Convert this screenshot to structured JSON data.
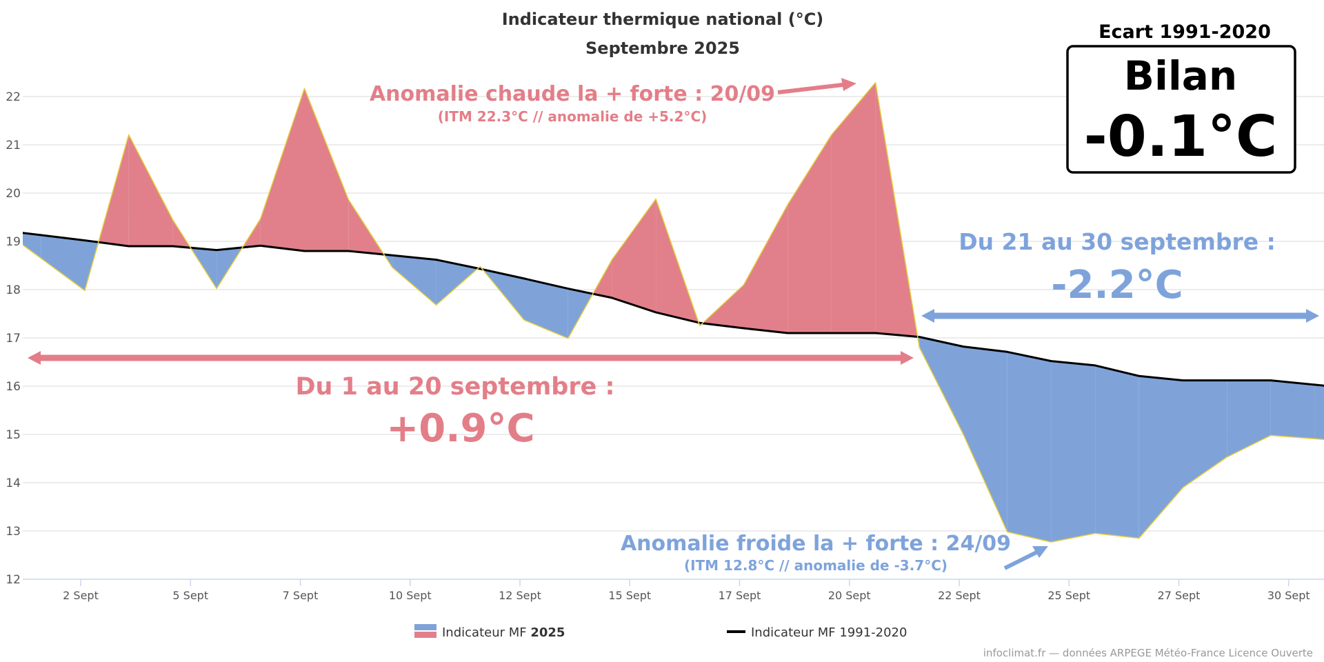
{
  "chart_data": {
    "type": "area",
    "title": "Indicateur thermique national (°C)",
    "subtitle": "Septembre 2025",
    "x": [
      1,
      2,
      3,
      4,
      5,
      6,
      7,
      8,
      9,
      10,
      11,
      12,
      13,
      14,
      15,
      16,
      17,
      18,
      19,
      20,
      21,
      22,
      23,
      24,
      25,
      26,
      27,
      28,
      29,
      30
    ],
    "x_tick_labels": [
      "2 Sept",
      "5 Sept",
      "7 Sept",
      "10 Sept",
      "12 Sept",
      "15 Sept",
      "17 Sept",
      "20 Sept",
      "22 Sept",
      "25 Sept",
      "27 Sept",
      "30 Sept"
    ],
    "y_ticks": [
      12,
      13,
      14,
      15,
      16,
      17,
      18,
      19,
      20,
      21,
      22
    ],
    "ylim": [
      12,
      22
    ],
    "grid": true,
    "legend_placement": "bottom",
    "series": [
      {
        "name": "Indicateur MF 2025",
        "values": [
          18.65,
          17.98,
          21.21,
          19.45,
          18.02,
          19.47,
          22.17,
          19.87,
          18.46,
          17.68,
          18.48,
          17.37,
          16.99,
          18.62,
          19.88,
          17.25,
          18.1,
          19.76,
          21.21,
          22.29,
          16.8,
          15.0,
          12.98,
          12.77,
          12.95,
          12.85,
          13.9,
          14.53,
          14.98,
          14.91
        ]
      },
      {
        "name": "Indicateur MF 1991-2020",
        "values": [
          19.13,
          19.02,
          18.9,
          18.9,
          18.82,
          18.91,
          18.8,
          18.8,
          18.71,
          18.62,
          18.43,
          18.23,
          18.02,
          17.83,
          17.53,
          17.31,
          17.2,
          17.1,
          17.1,
          17.1,
          17.02,
          16.82,
          16.71,
          16.52,
          16.43,
          16.21,
          16.12,
          16.12,
          16.12,
          16.03
        ]
      }
    ],
    "colors": {
      "above": "#e1808a",
      "below": "#7fa3d9",
      "line_2025": "#e6cf3c",
      "line_normal": "#000000",
      "grid": "#e6e6e6",
      "axis": "#ccd6eb"
    },
    "annotations": {
      "warm_title": "Anomalie chaude la + forte : 20/09",
      "warm_detail": "(ITM 22.3°C // anomalie de +5.2°C)",
      "cold_title": "Anomalie froide la + forte : 24/09",
      "cold_detail": "(ITM 12.8°C // anomalie de -3.7°C)",
      "period1_label": "Du 1 au 20 septembre :",
      "period1_value": "+0.9°C",
      "period2_label": "Du 21 au 30 septembre :",
      "period2_value": "-2.2°C"
    },
    "summary": {
      "heading": "Ecart 1991-2020",
      "label": "Bilan",
      "value": "-0.1°C"
    }
  },
  "legend": {
    "item1_prefix": "Indicateur MF ",
    "item1_bold": "2025",
    "item2": "Indicateur MF 1991-2020"
  },
  "credits": "infoclimat.fr — données ARPEGE Météo-France Licence Ouverte"
}
